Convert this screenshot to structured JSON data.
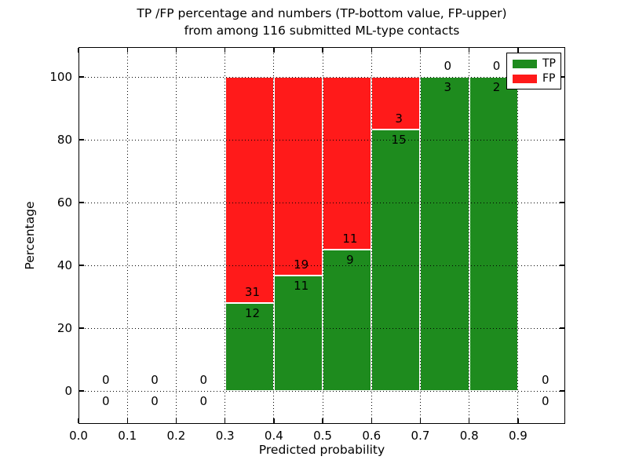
{
  "chart_data": {
    "type": "bar",
    "stacking": "percentage-stacked-histogram",
    "title_line1": "TP /FP percentage and numbers (TP-bottom value, FP-upper)",
    "title_line2": "from among 116 submitted ML-type contacts",
    "xlabel": "Predicted probability",
    "ylabel": "Percentage",
    "total_contacts": 116,
    "grid": "dotted",
    "xlim": [
      0,
      0.9966
    ],
    "ylim": [
      -10.5,
      109.5
    ],
    "x_tick_labels": [
      "0.0",
      "0.1",
      "0.2",
      "0.3",
      "0.4",
      "0.5",
      "0.6",
      "0.7",
      "0.8",
      "0.9"
    ],
    "x_tick_values": [
      0,
      0.1,
      0.2,
      0.3,
      0.4,
      0.5,
      0.6,
      0.7,
      0.8,
      0.9
    ],
    "y_tick_labels": [
      "0",
      "20",
      "40",
      "60",
      "80",
      "100"
    ],
    "y_tick_values": [
      0,
      20,
      40,
      60,
      80,
      100
    ],
    "colors": {
      "tp": "#1e8b1e",
      "fp": "#ff1a1a"
    },
    "legend": {
      "position": "upper right",
      "items": [
        {
          "label": "TP",
          "color": "#1e8b1e"
        },
        {
          "label": "FP",
          "color": "#ff1a1a"
        }
      ]
    },
    "bins": [
      {
        "range": [
          0.0,
          0.1
        ],
        "tp": 0,
        "fp": 0,
        "tp_percent": null
      },
      {
        "range": [
          0.1,
          0.2
        ],
        "tp": 0,
        "fp": 0,
        "tp_percent": null
      },
      {
        "range": [
          0.2,
          0.3
        ],
        "tp": 0,
        "fp": 0,
        "tp_percent": null
      },
      {
        "range": [
          0.3,
          0.4
        ],
        "tp": 12,
        "fp": 31,
        "tp_percent": 27.9
      },
      {
        "range": [
          0.4,
          0.5
        ],
        "tp": 11,
        "fp": 19,
        "tp_percent": 36.7
      },
      {
        "range": [
          0.5,
          0.6
        ],
        "tp": 9,
        "fp": 11,
        "tp_percent": 45.0
      },
      {
        "range": [
          0.6,
          0.7
        ],
        "tp": 15,
        "fp": 3,
        "tp_percent": 83.3
      },
      {
        "range": [
          0.7,
          0.8
        ],
        "tp": 3,
        "fp": 0,
        "tp_percent": 100.0
      },
      {
        "range": [
          0.8,
          0.9
        ],
        "tp": 2,
        "fp": 0,
        "tp_percent": 100.0
      },
      {
        "range": [
          0.9,
          1.0
        ],
        "tp": 0,
        "fp": 0,
        "tp_percent": null
      }
    ]
  }
}
